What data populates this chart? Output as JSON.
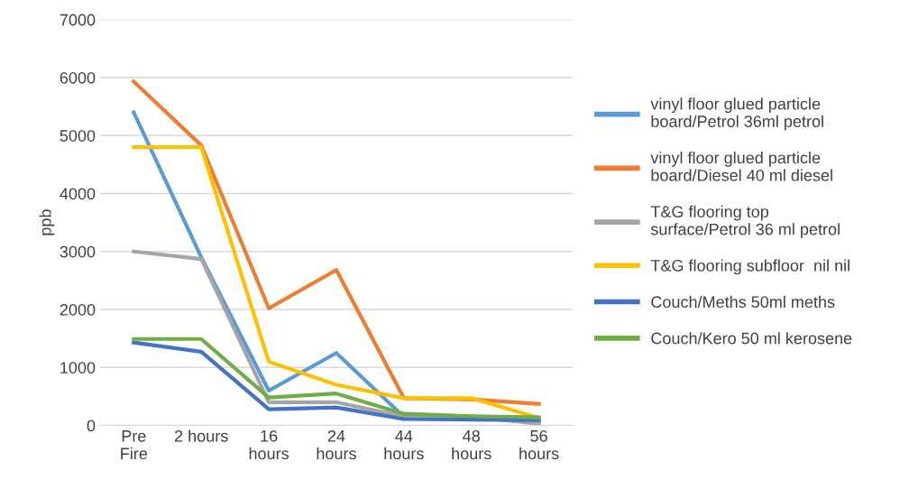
{
  "chart_data": {
    "type": "line",
    "ylabel": "ppb",
    "categories": [
      "Pre\nFire",
      "2 hours",
      "16\nhours",
      "24\nhours",
      "44\nhours",
      "48\nhours",
      "56\nhours"
    ],
    "ylim": [
      0,
      7000
    ],
    "yticks": [
      0,
      1000,
      2000,
      3000,
      4000,
      5000,
      6000,
      7000
    ],
    "grid": "y",
    "legend": "right",
    "marker": "none",
    "line_style": "solid",
    "series": [
      {
        "name": "vinyl floor glued particle\nboard/Petrol 36ml petrol",
        "color": "#5b9bd5",
        "values": [
          5400,
          2900,
          600,
          1250,
          150,
          120,
          80
        ]
      },
      {
        "name": "vinyl floor glued particle\nboard/Diesel 40 ml diesel",
        "color": "#ed7d31",
        "values": [
          5930,
          4830,
          2020,
          2680,
          470,
          450,
          370
        ]
      },
      {
        "name": "T&G flooring top\nsurface/Petrol 36 ml petrol",
        "color": "#a5a5a5",
        "values": [
          3000,
          2870,
          400,
          400,
          150,
          150,
          30
        ]
      },
      {
        "name": "T&G flooring subfloor  nil nil",
        "color": "#ffc000",
        "values": [
          4800,
          4800,
          1100,
          700,
          470,
          470,
          130
        ]
      },
      {
        "name": "Couch/Meths 50ml meths",
        "color": "#4472c4",
        "values": [
          1430,
          1270,
          280,
          310,
          110,
          100,
          90
        ]
      },
      {
        "name": "Couch/Kero 50 ml kerosene",
        "color": "#70ad47",
        "values": [
          1490,
          1490,
          480,
          550,
          200,
          160,
          140
        ]
      }
    ]
  }
}
